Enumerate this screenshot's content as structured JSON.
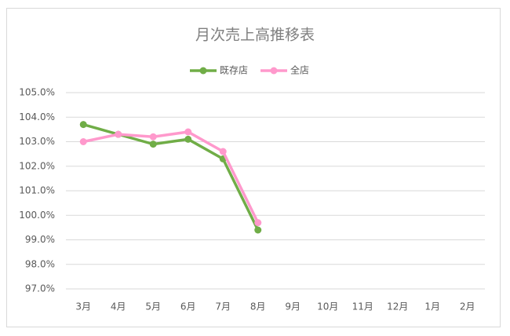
{
  "chart_data": {
    "type": "line",
    "title": "月次売上高推移表",
    "categories": [
      "3月",
      "4月",
      "5月",
      "6月",
      "7月",
      "8月",
      "9月",
      "10月",
      "11月",
      "12月",
      "1月",
      "2月"
    ],
    "series": [
      {
        "name": "既存店",
        "color": "#70ad47",
        "values": [
          103.7,
          103.3,
          102.9,
          103.1,
          102.3,
          99.4,
          null,
          null,
          null,
          null,
          null,
          null
        ]
      },
      {
        "name": "全店",
        "color": "#ff99cc",
        "values": [
          103.0,
          103.3,
          103.2,
          103.4,
          102.6,
          99.7,
          null,
          null,
          null,
          null,
          null,
          null
        ]
      }
    ],
    "ylim": [
      97,
      105
    ],
    "yticks": [
      {
        "value": 97,
        "label": "97.0%"
      },
      {
        "value": 98,
        "label": "98.0%"
      },
      {
        "value": 99,
        "label": "99.0%"
      },
      {
        "value": 100,
        "label": "100.0%"
      },
      {
        "value": 101,
        "label": "101.0%"
      },
      {
        "value": 102,
        "label": "102.0%"
      },
      {
        "value": 103,
        "label": "103.0%"
      },
      {
        "value": 104,
        "label": "104.0%"
      },
      {
        "value": 105,
        "label": "105.0%"
      }
    ],
    "grid": true,
    "legend": "top"
  }
}
